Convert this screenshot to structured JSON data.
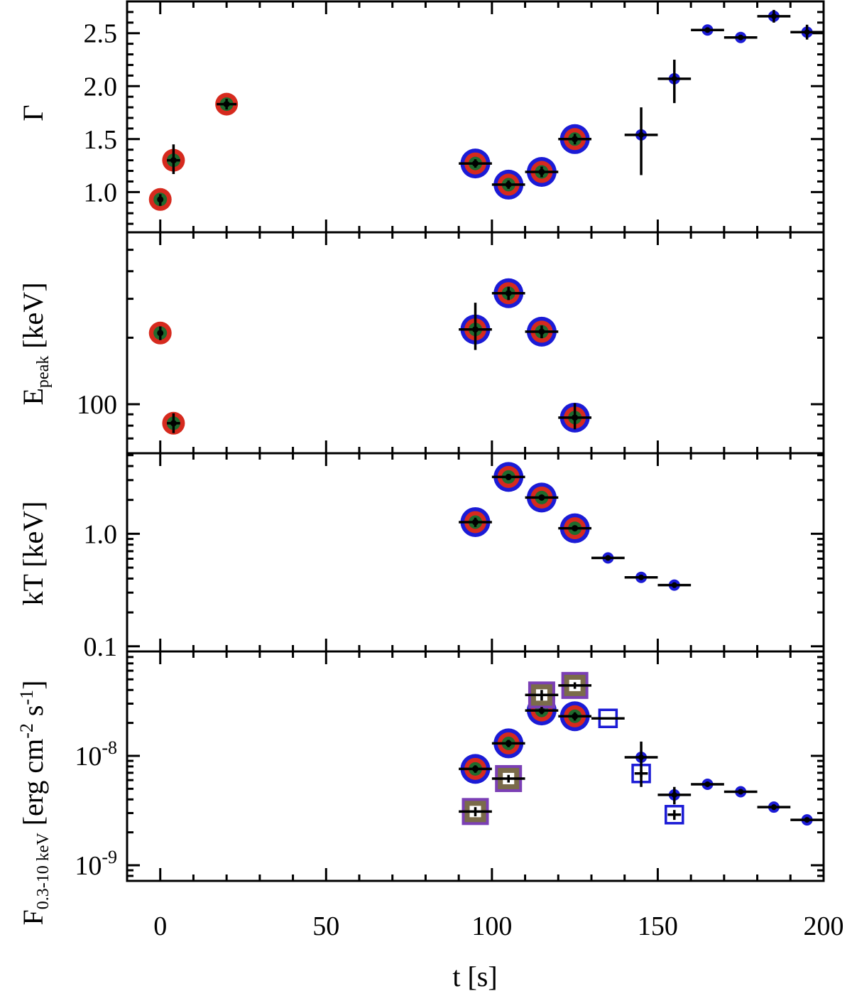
{
  "chart_data": {
    "type": "scatter",
    "xlabel": "t [s]",
    "xlim": [
      -10,
      200
    ],
    "xticks": [
      0,
      50,
      100,
      150,
      200
    ],
    "panels": [
      {
        "ylabel": "Γ",
        "yscale": "linear",
        "ylim": [
          0.62,
          2.8
        ],
        "yticks": [
          {
            "v": 1.0,
            "label": "1.0"
          },
          {
            "v": 1.5,
            "label": "1.5"
          },
          {
            "v": 2.0,
            "label": "2.0"
          },
          {
            "v": 2.5,
            "label": "2.5"
          }
        ],
        "series": [
          {
            "marker": "ring-circle",
            "ring_color": "#d62a1e",
            "points": [
              {
                "x": 0,
                "y": 0.93,
                "xerr": 0,
                "yerr": [
                  0.06,
                  0.05
                ]
              },
              {
                "x": 4,
                "y": 1.3,
                "xerr": 2,
                "yerr": [
                  0.13,
                  0.15
                ]
              },
              {
                "x": 20,
                "y": 1.83,
                "xerr": 3,
                "yerr": [
                  0.05,
                  0.05
                ]
              }
            ]
          },
          {
            "marker": "double-ring-circle",
            "ring_color": "#d62a1e",
            "outer_color": "#1b1bd6",
            "points": [
              {
                "x": 95,
                "y": 1.27,
                "xerr": 5,
                "yerr": [
                  0.04,
                  0.04
                ]
              },
              {
                "x": 105,
                "y": 1.07,
                "xerr": 5,
                "yerr": [
                  0.04,
                  0.04
                ]
              },
              {
                "x": 115,
                "y": 1.19,
                "xerr": 5,
                "yerr": [
                  0.05,
                  0.05
                ]
              },
              {
                "x": 125,
                "y": 1.5,
                "xerr": 5,
                "yerr": [
                  0.05,
                  0.05
                ]
              }
            ]
          },
          {
            "marker": "dot",
            "color": "#1b1bd6",
            "points": [
              {
                "x": 145,
                "y": 1.54,
                "xerr": 5,
                "yerr": [
                  0.38,
                  0.26
                ]
              },
              {
                "x": 155,
                "y": 2.07,
                "xerr": 5,
                "yerr": [
                  0.23,
                  0.18
                ]
              },
              {
                "x": 165,
                "y": 2.53,
                "xerr": 5,
                "yerr": [
                  0.02,
                  0.02
                ]
              },
              {
                "x": 175,
                "y": 2.46,
                "xerr": 5,
                "yerr": [
                  0.02,
                  0.02
                ]
              },
              {
                "x": 185,
                "y": 2.66,
                "xerr": 5,
                "yerr": [
                  0.06,
                  0.06
                ]
              },
              {
                "x": 195,
                "y": 2.51,
                "xerr": 5,
                "yerr": [
                  0.07,
                  0.07
                ]
              }
            ]
          }
        ]
      },
      {
        "ylabel": "E",
        "ylabel_sub": "peak",
        "ylabel_rest": " [keV]",
        "yscale": "log",
        "ylim": [
          60,
          600
        ],
        "yticks": [
          {
            "v": 100,
            "label": "100"
          }
        ],
        "series": [
          {
            "marker": "ring-circle",
            "ring_color": "#d62a1e",
            "points": [
              {
                "x": 0,
                "y": 210,
                "xerr": 0,
                "yerr": [
                  15,
                  15
                ]
              },
              {
                "x": 4,
                "y": 82,
                "xerr": 2,
                "yerr": [
                  8,
                  9
                ]
              }
            ]
          },
          {
            "marker": "double-ring-circle",
            "ring_color": "#d62a1e",
            "outer_color": "#1b1bd6",
            "points": [
              {
                "x": 95,
                "y": 218,
                "xerr": 5,
                "yerr": [
                  42,
                  70
                ]
              },
              {
                "x": 105,
                "y": 318,
                "xerr": 5,
                "yerr": [
                  22,
                  22
                ]
              },
              {
                "x": 115,
                "y": 213,
                "xerr": 5,
                "yerr": [
                  14,
                  14
                ]
              },
              {
                "x": 125,
                "y": 87,
                "xerr": 5,
                "yerr": [
                  10,
                  14
                ]
              }
            ]
          }
        ]
      },
      {
        "ylabel": "kT [keV]",
        "yscale": "log",
        "ylim": [
          0.09,
          5.2
        ],
        "yticks": [
          {
            "v": 0.1,
            "label": "0.1"
          },
          {
            "v": 1.0,
            "label": "1.0"
          }
        ],
        "series": [
          {
            "marker": "double-ring-circle",
            "ring_color": "#d62a1e",
            "outer_color": "#1b1bd6",
            "points": [
              {
                "x": 95,
                "y": 1.27,
                "xerr": 5,
                "yerr": [
                  0.12,
                  0.12
                ]
              },
              {
                "x": 105,
                "y": 3.2,
                "xerr": 5,
                "yerr": [
                  0.2,
                  0.2
                ]
              },
              {
                "x": 115,
                "y": 2.1,
                "xerr": 5,
                "yerr": [
                  0.12,
                  0.12
                ]
              },
              {
                "x": 125,
                "y": 1.12,
                "xerr": 5,
                "yerr": [
                  0.06,
                  0.06
                ]
              }
            ]
          },
          {
            "marker": "dot",
            "color": "#1b1bd6",
            "points": [
              {
                "x": 135,
                "y": 0.61,
                "xerr": 5,
                "yerr": [
                  0.02,
                  0.02
                ]
              },
              {
                "x": 145,
                "y": 0.41,
                "xerr": 5,
                "yerr": [
                  0.02,
                  0.02
                ]
              },
              {
                "x": 155,
                "y": 0.35,
                "xerr": 5,
                "yerr": [
                  0.02,
                  0.02
                ]
              }
            ]
          }
        ]
      },
      {
        "ylabel": "F",
        "ylabel_sub": "0.3-10 keV",
        "ylabel_rest": " [erg cm",
        "ylabel_sup1": "-2",
        "ylabel_mid": " s",
        "ylabel_sup2": "-1",
        "ylabel_end": "]",
        "yscale": "log",
        "ylim": [
          7.2e-10,
          9e-08
        ],
        "yticks": [
          {
            "v": 1e-09,
            "base": "10",
            "exp": "-9"
          },
          {
            "v": 1e-08,
            "base": "10",
            "exp": "-8"
          }
        ],
        "series": [
          {
            "marker": "double-ring-circle",
            "ring_color": "#d62a1e",
            "outer_color": "#1b1bd6",
            "points": [
              {
                "x": 95,
                "y": 7.6e-09,
                "xerr": 5,
                "yerr": [
                  6e-10,
                  6e-10
                ]
              },
              {
                "x": 105,
                "y": 1.3e-08,
                "xerr": 5,
                "yerr": [
                  1e-09,
                  1e-09
                ]
              },
              {
                "x": 115,
                "y": 2.6e-08,
                "xerr": 5,
                "yerr": [
                  2e-09,
                  2e-09
                ]
              },
              {
                "x": 125,
                "y": 2.3e-08,
                "xerr": 5,
                "yerr": [
                  2e-09,
                  2e-09
                ]
              }
            ]
          },
          {
            "marker": "square",
            "fill_color": "#7a6b4a",
            "outline_color": "#7b3fb5",
            "points": [
              {
                "x": 95,
                "y": 3.1e-09,
                "xerr": 5,
                "yerr": [
                  3e-10,
                  3e-10
                ]
              },
              {
                "x": 105,
                "y": 6.2e-09,
                "xerr": 5,
                "yerr": [
                  5e-10,
                  5e-10
                ]
              },
              {
                "x": 115,
                "y": 3.6e-08,
                "xerr": 5,
                "yerr": [
                  4e-09,
                  4e-09
                ]
              },
              {
                "x": 125,
                "y": 4.4e-08,
                "xerr": 5,
                "yerr": [
                  3e-09,
                  3e-09
                ]
              }
            ]
          },
          {
            "marker": "open-square",
            "color": "#1b1bd6",
            "points": [
              {
                "x": 135,
                "y": 2.2e-08,
                "xerr": 5,
                "yerr": [
                  0,
                  0
                ]
              },
              {
                "x": 145,
                "y": 6.9e-09,
                "xerr": 2,
                "yerr": [
                  5e-10,
                  5e-10
                ]
              },
              {
                "x": 155,
                "y": 2.9e-09,
                "xerr": 2,
                "yerr": [
                  3e-10,
                  3e-10
                ]
              }
            ]
          },
          {
            "marker": "dot",
            "color": "#1b1bd6",
            "points": [
              {
                "x": 145,
                "y": 9.7e-09,
                "xerr": 5,
                "yerr": [
                  4.5e-09,
                  3.8e-09
                ]
              },
              {
                "x": 155,
                "y": 4.4e-09,
                "xerr": 5,
                "yerr": [
                  8e-10,
                  8e-10
                ]
              },
              {
                "x": 165,
                "y": 5.5e-09,
                "xerr": 5,
                "yerr": [
                  2e-10,
                  2e-10
                ]
              },
              {
                "x": 175,
                "y": 4.7e-09,
                "xerr": 5,
                "yerr": [
                  2e-10,
                  2e-10
                ]
              },
              {
                "x": 185,
                "y": 3.4e-09,
                "xerr": 5,
                "yerr": [
                  2e-10,
                  2e-10
                ]
              },
              {
                "x": 195,
                "y": 2.6e-09,
                "xerr": 5,
                "yerr": [
                  1e-10,
                  1e-10
                ]
              }
            ]
          }
        ]
      }
    ]
  }
}
